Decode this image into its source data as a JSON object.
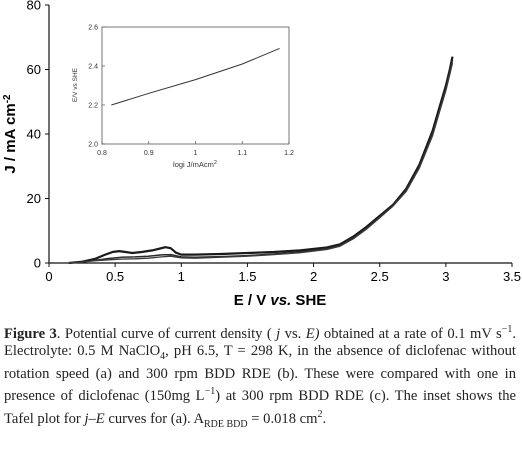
{
  "chart_data": [
    {
      "type": "line",
      "xlabel": "E / V vs. SHE",
      "ylabel": "J / mA cm2",
      "xlim": [
        0,
        3.5
      ],
      "ylim": [
        0,
        80
      ],
      "x_ticks": [
        "0",
        "0.5",
        "1",
        "1.5",
        "2",
        "2.5",
        "3",
        "3.5"
      ],
      "y_ticks": [
        "0",
        "20",
        "40",
        "60",
        "80"
      ],
      "grid": false,
      "series": [
        {
          "x": [
            0.15,
            0.25,
            0.35,
            0.42,
            0.48,
            0.53,
            0.58,
            0.63,
            0.7,
            0.78,
            0.84,
            0.88,
            0.92,
            0.96,
            1.0,
            1.1,
            1.3,
            1.5,
            1.7,
            1.9,
            2.1,
            2.2,
            2.3,
            2.4,
            2.5,
            2.6,
            2.7,
            2.8,
            2.9,
            2.95,
            3.0,
            3.03,
            3.05
          ],
          "values": [
            0,
            0.4,
            1.3,
            2.5,
            3.4,
            3.7,
            3.4,
            3.1,
            3.4,
            3.9,
            4.5,
            4.9,
            4.6,
            3.2,
            2.6,
            2.6,
            2.8,
            3.1,
            3.4,
            3.9,
            4.8,
            5.8,
            8.2,
            11.2,
            14.6,
            18.0,
            23,
            30.5,
            41,
            48,
            55,
            60,
            64
          ]
        },
        {
          "x": [
            0.15,
            0.25,
            0.35,
            0.45,
            0.55,
            0.65,
            0.75,
            0.85,
            0.92,
            1.0,
            1.1,
            1.3,
            1.5,
            1.7,
            1.9,
            2.1,
            2.2,
            2.3,
            2.4,
            2.5,
            2.6,
            2.7,
            2.8,
            2.9,
            2.95,
            3.0,
            3.03,
            3.05
          ],
          "values": [
            0,
            0.3,
            0.8,
            1.4,
            1.8,
            1.9,
            2.1,
            2.5,
            2.6,
            1.9,
            1.8,
            2.0,
            2.3,
            2.8,
            3.4,
            4.4,
            5.4,
            7.8,
            10.8,
            14.2,
            17.8,
            22.5,
            29.8,
            40,
            47,
            54,
            59,
            63
          ]
        },
        {
          "x": [
            0.15,
            0.25,
            0.35,
            0.45,
            0.55,
            0.65,
            0.75,
            0.85,
            0.92,
            1.0,
            1.1,
            1.3,
            1.5,
            1.7,
            1.9,
            2.1,
            2.2,
            2.3,
            2.4,
            2.5,
            2.6,
            2.7,
            2.8,
            2.9,
            2.95,
            3.0,
            3.03,
            3.05
          ],
          "values": [
            0,
            0.3,
            0.7,
            1.0,
            1.2,
            1.3,
            1.5,
            1.9,
            2.1,
            1.6,
            1.5,
            1.8,
            2.1,
            2.6,
            3.2,
            4.2,
            5.2,
            7.5,
            10.5,
            14,
            17.6,
            22.2,
            29.5,
            39.5,
            46.5,
            53.5,
            58.5,
            62
          ]
        }
      ]
    },
    {
      "type": "line",
      "xlabel": "logi J/mAcm2",
      "ylabel": "E/V vs SHE",
      "xlim": [
        0.8,
        1.2
      ],
      "ylim": [
        2.0,
        2.6
      ],
      "x_ticks": [
        "0.8",
        "0.9",
        "1",
        "1.1",
        "1.2"
      ],
      "y_ticks": [
        "2.0",
        "2.2",
        "2.4",
        "2.6"
      ],
      "series": [
        {
          "x": [
            0.82,
            0.9,
            1.0,
            1.1,
            1.18
          ],
          "values": [
            2.2,
            2.26,
            2.33,
            2.41,
            2.49
          ]
        }
      ]
    }
  ],
  "caption": {
    "label": "Figure 3",
    "text": ". Potential curve of current density ( j vs. E) obtained at a rate of 0.1 mV s⁻¹. Electrolyte: 0.5 M NaClO₄, pH 6.5, T = 298 K, in the absence of diclofenac without rotation speed (a) and 300 rpm BDD RDE (b). These were compared with one in presence of diclofenac (150mg L⁻¹) at 300 rpm BDD RDE (c). The inset shows the Tafel plot for j–E curves for (a). A₀ BDD = 0.018 cm²."
  },
  "caption_parts": {
    "label": "Figure 3",
    "p1": ". Potential curve of current density (",
    "j": " j",
    "p2": " vs. ",
    "E": "E)",
    "p3": " obtained at a rate of 0.1 mV s",
    "p4": ". Electrolyte: 0.5 M NaClO",
    "sub4": "4",
    "p5": ", pH 6.5, T = 298 K, in the absence of diclofenac without rotation speed (a) and 300 rpm BDD RDE (b). These were compared with one in presence of diclofenac (150mg L",
    "p6": ") at 300 rpm BDD RDE (c). The inset shows the Tafel plot for ",
    "jE": "j–E",
    "p7": " curves for (a). A",
    "sub_rde": "RDE BDD",
    "p8": " = 0.018 cm",
    "sup_m1": "−1",
    "sup_2": "2"
  }
}
